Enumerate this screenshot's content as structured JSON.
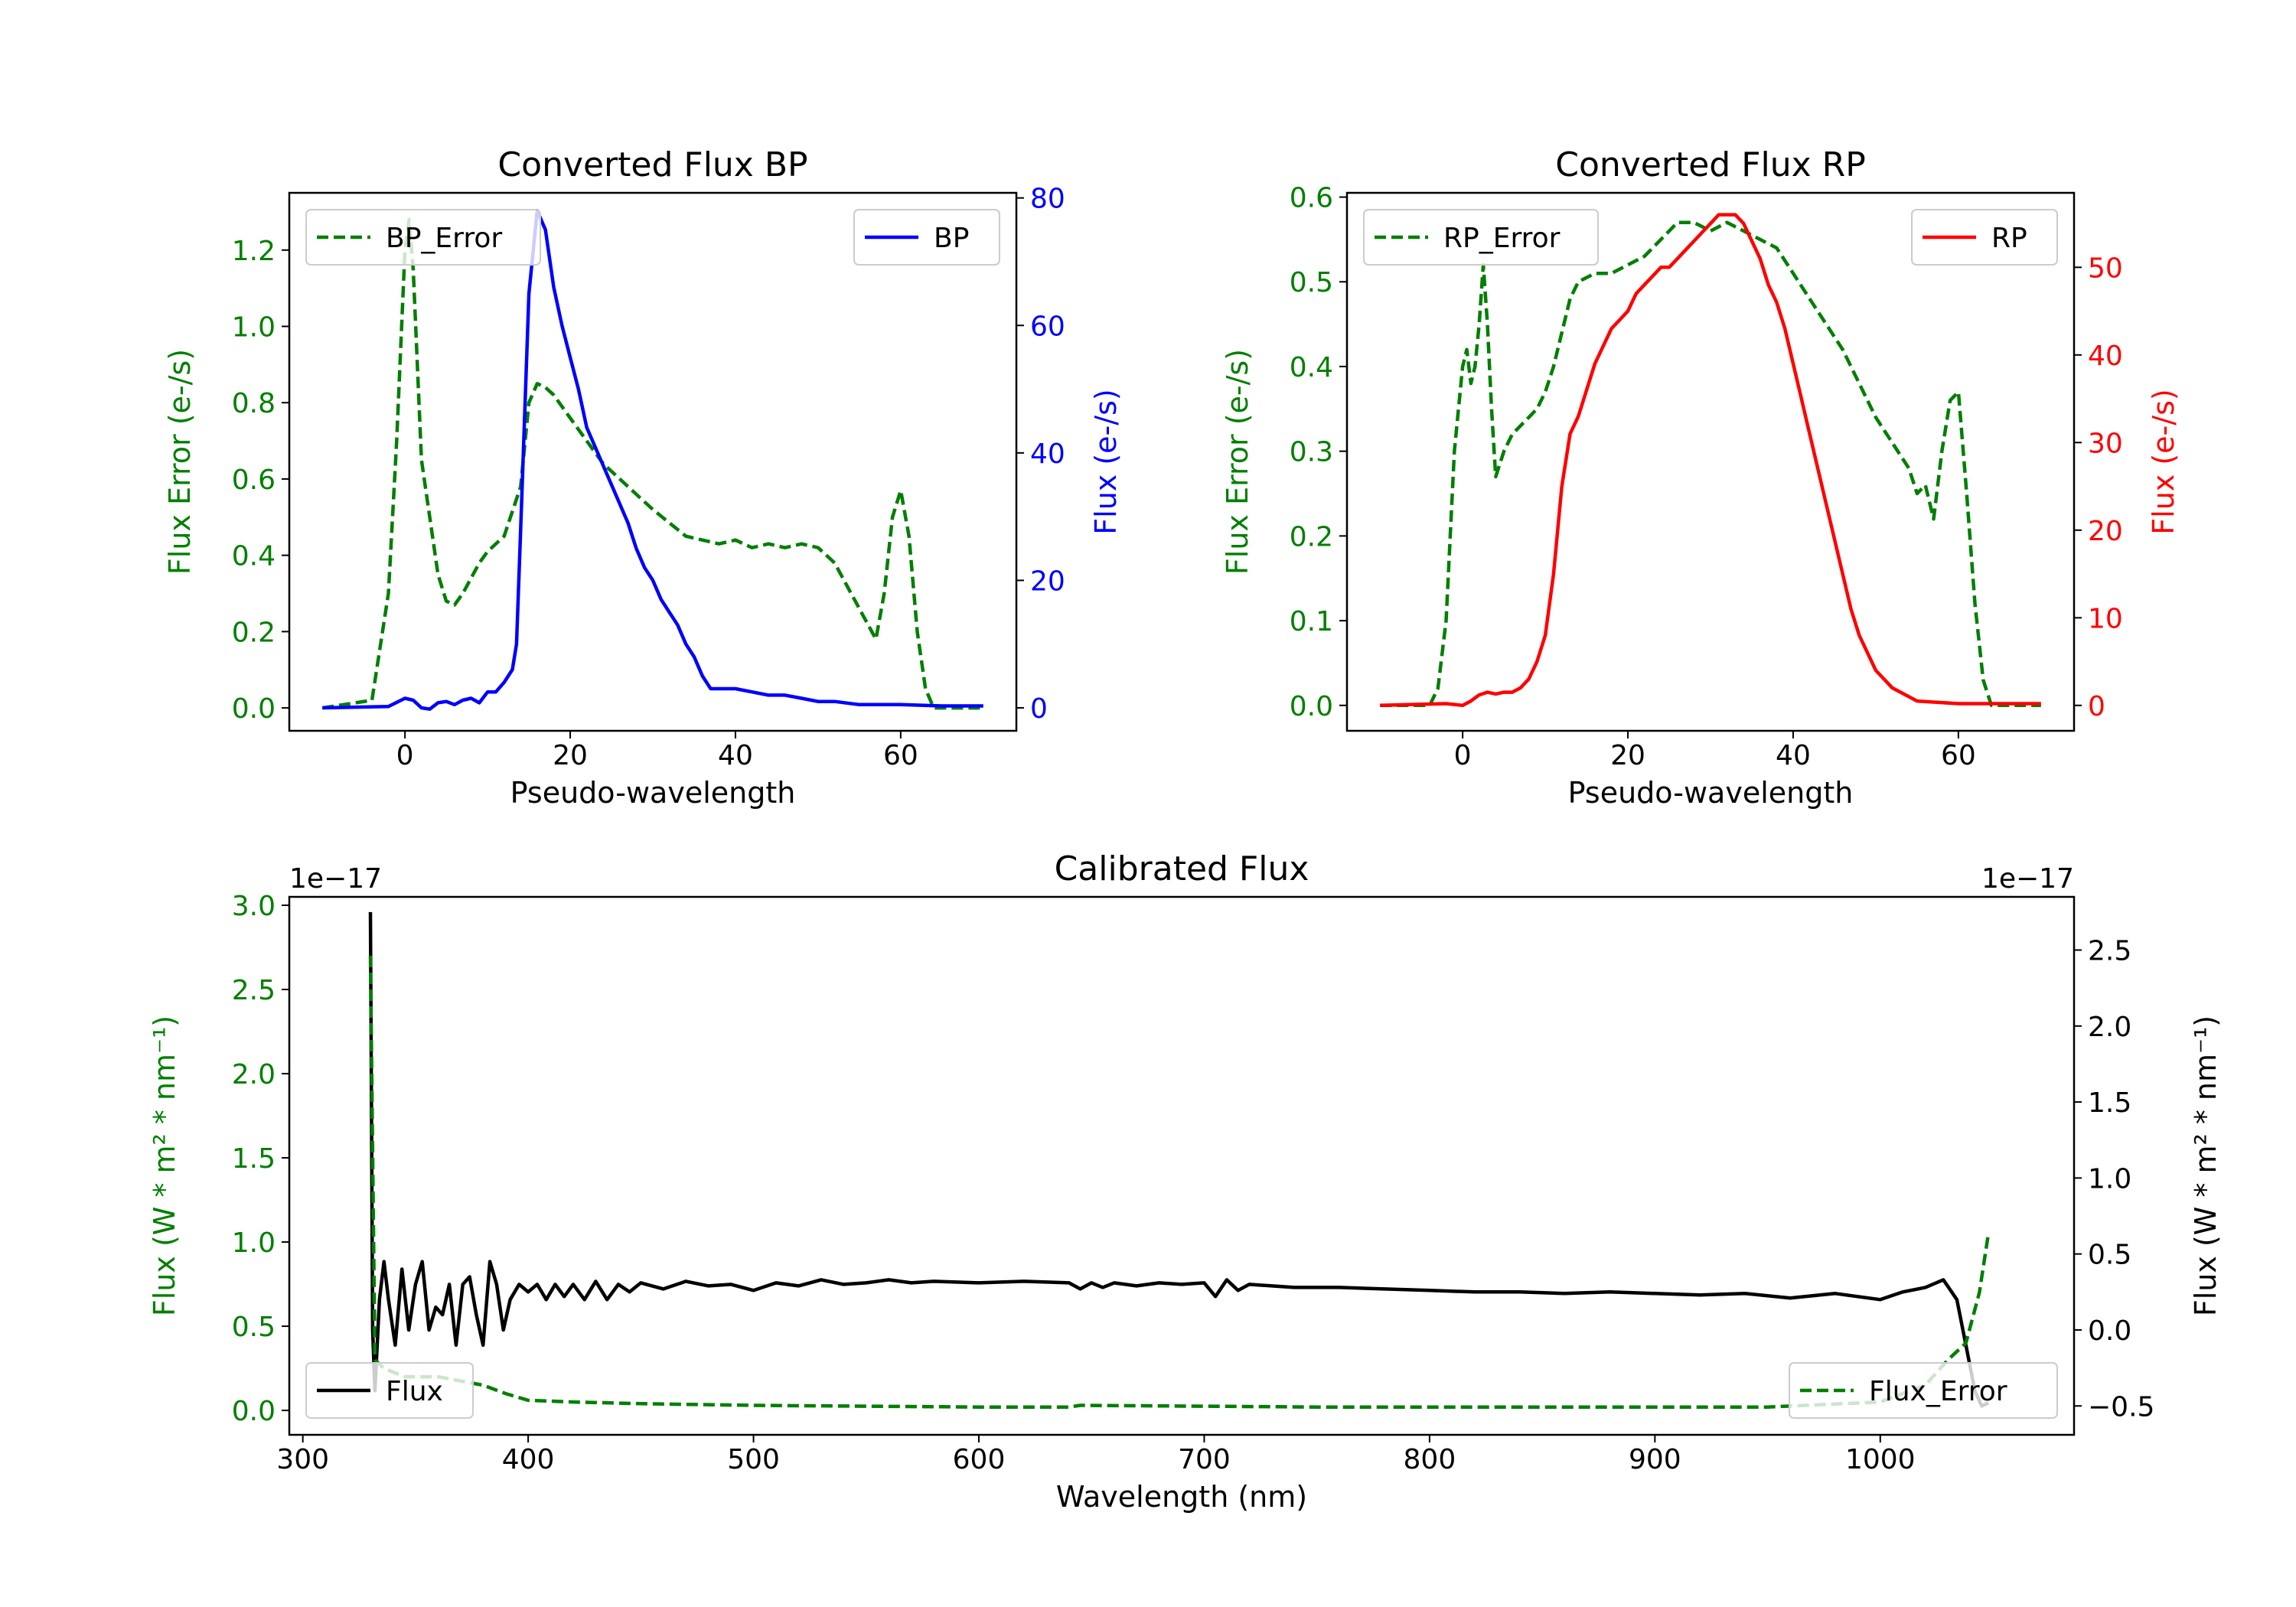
{
  "colors": {
    "bp": "#0000ff",
    "rp": "#ff0000",
    "error": "#007f00",
    "flux": "#000000",
    "axis": "#000000"
  },
  "chart_data": [
    {
      "id": "bp",
      "type": "line",
      "title": "Converted Flux BP",
      "xlabel": "Pseudo-wavelength",
      "ylabel_left": "Flux Error (e-/s)",
      "ylabel_right": "Flux (e-/s)",
      "xlim": [
        -14,
        74
      ],
      "ylim_left": [
        -0.06,
        1.35
      ],
      "ylim_right": [
        -3.6,
        80.8
      ],
      "xticks": [
        0,
        20,
        40,
        60
      ],
      "yticks_left": [
        0.0,
        0.2,
        0.4,
        0.6,
        0.8,
        1.0,
        1.2
      ],
      "yticks_left_labels": [
        "0.0",
        "0.2",
        "0.4",
        "0.6",
        "0.8",
        "1.0",
        "1.2"
      ],
      "yticks_right": [
        0,
        20,
        40,
        60,
        80
      ],
      "yticks_right_labels": [
        "0",
        "20",
        "40",
        "60",
        "80"
      ],
      "legend_left": {
        "label": "BP_Error",
        "placement": "upper-left"
      },
      "legend_right": {
        "label": "BP",
        "placement": "upper-right"
      },
      "series": [
        {
          "name": "BP_Error",
          "axis": "left",
          "style": "dashed",
          "color": "#007f00",
          "x": [
            -10,
            -4,
            -2,
            -1,
            0,
            0.5,
            1,
            2,
            3,
            4,
            5,
            6,
            7,
            8,
            9,
            10,
            12,
            14,
            15,
            16,
            17,
            18,
            20,
            22,
            24,
            26,
            28,
            30,
            34,
            36,
            38,
            40,
            42,
            44,
            46,
            48,
            50,
            52,
            54,
            56,
            57,
            58,
            59,
            60,
            61,
            62,
            63,
            64,
            70
          ],
          "y": [
            0.0,
            0.02,
            0.3,
            0.7,
            1.2,
            1.28,
            1.15,
            0.65,
            0.5,
            0.35,
            0.28,
            0.27,
            0.3,
            0.34,
            0.38,
            0.41,
            0.45,
            0.58,
            0.8,
            0.85,
            0.84,
            0.82,
            0.76,
            0.7,
            0.64,
            0.6,
            0.56,
            0.52,
            0.45,
            0.44,
            0.43,
            0.44,
            0.42,
            0.43,
            0.42,
            0.43,
            0.42,
            0.38,
            0.3,
            0.22,
            0.18,
            0.3,
            0.5,
            0.57,
            0.45,
            0.2,
            0.05,
            0.0,
            0.0
          ]
        },
        {
          "name": "BP",
          "axis": "right",
          "style": "solid",
          "color": "#0000ff",
          "x": [
            -10,
            -2,
            0,
            1,
            2,
            3,
            4,
            5,
            6,
            7,
            8,
            9,
            10,
            11,
            12,
            13,
            13.5,
            14,
            15,
            16,
            17,
            18,
            19,
            20,
            21,
            22,
            23,
            24,
            25,
            26,
            27,
            28,
            29,
            30,
            31,
            32,
            33,
            34,
            35,
            36,
            37,
            38,
            39,
            40,
            42,
            44,
            46,
            48,
            50,
            52,
            55,
            60,
            65,
            70
          ],
          "y": [
            0,
            0.2,
            1.5,
            1.2,
            0,
            -0.2,
            0.8,
            1,
            0.5,
            1.2,
            1.5,
            0.8,
            2.5,
            2.5,
            4,
            6,
            10,
            28,
            65,
            78,
            75,
            66,
            60,
            55,
            50,
            44,
            41,
            38,
            35,
            32,
            29,
            25,
            22,
            20,
            17,
            15,
            13,
            10,
            8,
            5,
            3,
            3,
            3,
            3,
            2.5,
            2,
            2,
            1.5,
            1,
            1,
            0.5,
            0.5,
            0.3,
            0.3
          ]
        }
      ]
    },
    {
      "id": "rp",
      "type": "line",
      "title": "Converted Flux RP",
      "xlabel": "Pseudo-wavelength",
      "ylabel_left": "Flux Error (e-/s)",
      "ylabel_right": "Flux (e-/s)",
      "xlim": [
        -14,
        74
      ],
      "ylim_left": [
        -0.03,
        0.605
      ],
      "ylim_right": [
        -2.9,
        58.5
      ],
      "xticks": [
        0,
        20,
        40,
        60
      ],
      "yticks_left": [
        0.0,
        0.1,
        0.2,
        0.3,
        0.4,
        0.5,
        0.6
      ],
      "yticks_left_labels": [
        "0.0",
        "0.1",
        "0.2",
        "0.3",
        "0.4",
        "0.5",
        "0.6"
      ],
      "yticks_right": [
        0,
        10,
        20,
        30,
        40,
        50
      ],
      "yticks_right_labels": [
        "0",
        "10",
        "20",
        "30",
        "40",
        "50"
      ],
      "legend_left": {
        "label": "RP_Error",
        "placement": "upper-left"
      },
      "legend_right": {
        "label": "RP",
        "placement": "upper-right"
      },
      "series": [
        {
          "name": "RP_Error",
          "axis": "left",
          "style": "dashed",
          "color": "#007f00",
          "x": [
            -10,
            -4,
            -3,
            -2,
            -1,
            0,
            0.5,
            1,
            1.5,
            2,
            2.5,
            3,
            3.5,
            4,
            5,
            6,
            7,
            8,
            9,
            10,
            11,
            12,
            13,
            14,
            16,
            18,
            20,
            22,
            24,
            26,
            28,
            30,
            32,
            34,
            36,
            38,
            40,
            42,
            44,
            46,
            48,
            50,
            52,
            54,
            55,
            56,
            57,
            58,
            59,
            60,
            61,
            62,
            63,
            64,
            70
          ],
          "y": [
            0.0,
            0.0,
            0.02,
            0.1,
            0.3,
            0.4,
            0.42,
            0.38,
            0.4,
            0.45,
            0.52,
            0.45,
            0.35,
            0.27,
            0.3,
            0.32,
            0.33,
            0.34,
            0.35,
            0.37,
            0.4,
            0.44,
            0.48,
            0.5,
            0.51,
            0.51,
            0.52,
            0.53,
            0.55,
            0.57,
            0.57,
            0.56,
            0.57,
            0.56,
            0.55,
            0.54,
            0.51,
            0.48,
            0.45,
            0.42,
            0.38,
            0.34,
            0.31,
            0.28,
            0.25,
            0.26,
            0.22,
            0.3,
            0.36,
            0.37,
            0.25,
            0.12,
            0.03,
            0.0,
            0.0
          ]
        },
        {
          "name": "RP",
          "axis": "right",
          "style": "solid",
          "color": "#ff0000",
          "x": [
            -10,
            -2,
            0,
            1,
            2,
            3,
            4,
            5,
            6,
            7,
            8,
            9,
            10,
            11,
            12,
            13,
            14,
            15,
            16,
            17,
            18,
            19,
            20,
            21,
            22,
            23,
            24,
            25,
            26,
            27,
            28,
            29,
            30,
            31,
            32,
            33,
            34,
            35,
            36,
            37,
            38,
            39,
            40,
            41,
            42,
            43,
            44,
            45,
            46,
            47,
            48,
            49,
            50,
            52,
            55,
            60,
            65,
            70
          ],
          "y": [
            0,
            0.2,
            0,
            0.5,
            1.2,
            1.5,
            1.3,
            1.5,
            1.5,
            2,
            3,
            5,
            8,
            15,
            25,
            31,
            33,
            36,
            39,
            41,
            43,
            44,
            45,
            47,
            48,
            49,
            50,
            50,
            51,
            52,
            53,
            54,
            55,
            56,
            56,
            56,
            55,
            53,
            51,
            48,
            46,
            43,
            39,
            35,
            31,
            27,
            23,
            19,
            15,
            11,
            8,
            6,
            4,
            2,
            0.5,
            0.2,
            0.2,
            0.2
          ]
        }
      ]
    },
    {
      "id": "calibrated",
      "type": "line",
      "title": "Calibrated Flux",
      "xlabel": "Wavelength (nm)",
      "ylabel_left": "Flux (W * m² * nm⁻¹)",
      "ylabel_right": "Flux (W * m² * nm⁻¹)",
      "offset_left": "1e−17",
      "offset_right": "1e−17",
      "xlim": [
        294,
        1086
      ],
      "ylim_left": [
        -0.145,
        3.05
      ],
      "ylim_right": [
        -0.69,
        2.85
      ],
      "xticks": [
        300,
        400,
        500,
        600,
        700,
        800,
        900,
        1000
      ],
      "yticks_left": [
        0.0,
        0.5,
        1.0,
        1.5,
        2.0,
        2.5,
        3.0
      ],
      "yticks_left_labels": [
        "0.0",
        "0.5",
        "1.0",
        "1.5",
        "2.0",
        "2.5",
        "3.0"
      ],
      "yticks_right": [
        -0.5,
        0.0,
        0.5,
        1.0,
        1.5,
        2.0,
        2.5
      ],
      "yticks_right_labels": [
        "−0.5",
        "0.0",
        "0.5",
        "1.0",
        "1.5",
        "2.0",
        "2.5"
      ],
      "legend_left": {
        "label": "Flux",
        "placement": "lower-left"
      },
      "legend_right": {
        "label": "Flux_Error",
        "placement": "lower-right"
      },
      "series": [
        {
          "name": "Flux",
          "axis": "right",
          "style": "solid",
          "color": "#000000",
          "x": [
            330,
            331,
            332,
            334,
            336,
            338,
            341,
            344,
            347,
            350,
            353,
            356,
            359,
            362,
            365,
            368,
            371,
            374,
            377,
            380,
            383,
            386,
            389,
            392,
            396,
            400,
            404,
            408,
            412,
            416,
            420,
            425,
            430,
            435,
            440,
            445,
            450,
            460,
            470,
            480,
            490,
            500,
            510,
            520,
            530,
            540,
            550,
            560,
            570,
            580,
            600,
            620,
            640,
            645,
            650,
            655,
            660,
            670,
            680,
            690,
            700,
            705,
            710,
            715,
            720,
            730,
            740,
            760,
            780,
            800,
            820,
            840,
            860,
            880,
            900,
            920,
            940,
            960,
            980,
            1000,
            1010,
            1020,
            1028,
            1034,
            1038,
            1042,
            1045,
            1048
          ],
          "y": [
            2.75,
            0.0,
            -0.4,
            0.2,
            0.45,
            0.2,
            -0.1,
            0.4,
            0.0,
            0.3,
            0.45,
            0.0,
            0.15,
            0.1,
            0.3,
            -0.1,
            0.3,
            0.35,
            0.1,
            -0.1,
            0.45,
            0.3,
            0.0,
            0.2,
            0.3,
            0.25,
            0.3,
            0.2,
            0.3,
            0.22,
            0.3,
            0.2,
            0.32,
            0.2,
            0.3,
            0.25,
            0.31,
            0.27,
            0.32,
            0.29,
            0.3,
            0.26,
            0.31,
            0.29,
            0.33,
            0.3,
            0.31,
            0.33,
            0.31,
            0.32,
            0.31,
            0.32,
            0.31,
            0.27,
            0.31,
            0.28,
            0.31,
            0.29,
            0.31,
            0.3,
            0.31,
            0.22,
            0.33,
            0.26,
            0.3,
            0.29,
            0.28,
            0.28,
            0.27,
            0.26,
            0.25,
            0.25,
            0.24,
            0.25,
            0.24,
            0.23,
            0.24,
            0.21,
            0.24,
            0.2,
            0.25,
            0.28,
            0.33,
            0.2,
            -0.1,
            -0.4,
            -0.5,
            -0.48
          ]
        },
        {
          "name": "Flux_Error",
          "axis": "left",
          "style": "dashed",
          "color": "#007f00",
          "x": [
            330,
            332,
            336,
            345,
            360,
            380,
            390,
            400,
            420,
            450,
            500,
            550,
            600,
            640,
            645,
            700,
            750,
            800,
            850,
            900,
            950,
            1000,
            1020,
            1030,
            1038,
            1044,
            1048
          ],
          "y": [
            2.7,
            0.3,
            0.25,
            0.2,
            0.2,
            0.15,
            0.1,
            0.06,
            0.05,
            0.04,
            0.03,
            0.025,
            0.02,
            0.02,
            0.03,
            0.025,
            0.02,
            0.02,
            0.02,
            0.02,
            0.02,
            0.05,
            0.15,
            0.3,
            0.4,
            0.7,
            1.05
          ]
        }
      ]
    }
  ]
}
